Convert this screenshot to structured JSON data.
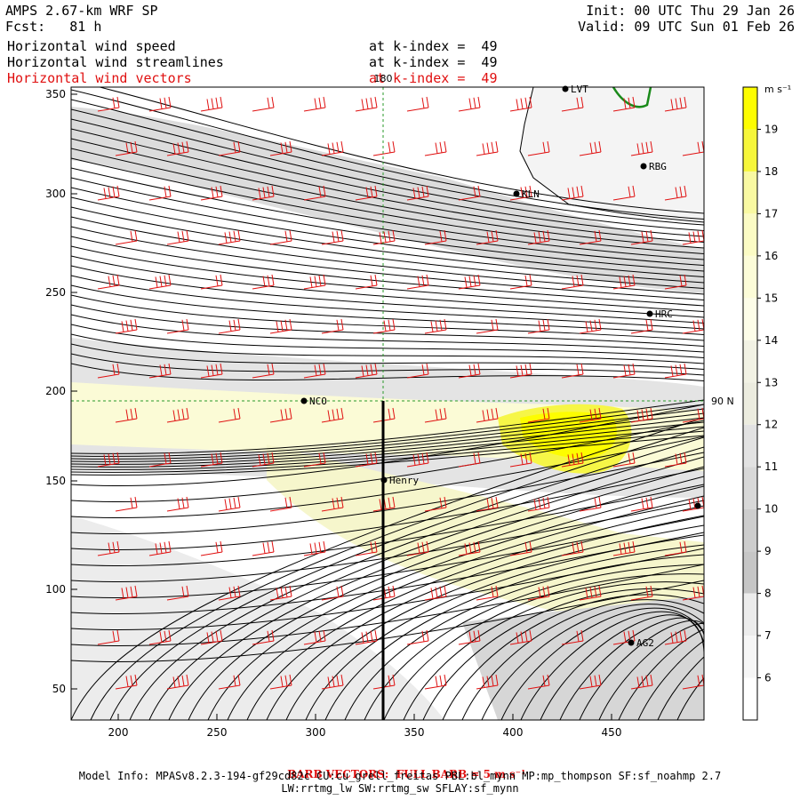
{
  "header": {
    "title": "AMPS 2.67-km WRF SP",
    "forecast": "Fcst:   81 h",
    "init": "Init: 00 UTC Thu 29 Jan 26",
    "valid": "Valid: 09 UTC Sun 01 Feb 26",
    "fields": [
      {
        "name": "Horizontal wind speed",
        "level": "at k-index =  49"
      },
      {
        "name": "Horizontal wind streamlines",
        "level": "at k-index =  49"
      },
      {
        "name": "Horizontal wind vectors",
        "level": "at k-index =  49"
      }
    ]
  },
  "map": {
    "x_ticks": [
      "200",
      "250",
      "300",
      "350",
      "400",
      "450"
    ],
    "y_ticks": [
      "50",
      "100",
      "150",
      "200",
      "250",
      "300",
      "350"
    ],
    "meridian_label": "180",
    "parallel_label": "90 N",
    "stations": [
      {
        "name": "LVT"
      },
      {
        "name": "RBG"
      },
      {
        "name": "KLN"
      },
      {
        "name": "HRC"
      },
      {
        "name": "NCO"
      },
      {
        "name": "Henry"
      },
      {
        "name": "AG2"
      }
    ]
  },
  "colorbar": {
    "units": "m s⁻¹",
    "labels": [
      "19",
      "18",
      "17",
      "16",
      "15",
      "14",
      "13",
      "12",
      "11",
      "10",
      "9",
      "8",
      "7",
      "6"
    ],
    "colors": [
      "#fdfd00",
      "#f6f63a",
      "#f9f9a2",
      "#fbfbc4",
      "#fcfcd8",
      "#fdfde8",
      "#f2f2e4",
      "#ececdf",
      "#e2e2e2",
      "#d8d8d8",
      "#cdcdcd",
      "#c6c6c6",
      "#ececec",
      "#f6f6f6",
      "#ffffff"
    ]
  },
  "footer": {
    "barb_note": "BARB VECTORS:  FULL BARB = 5 m s⁻¹",
    "model_info": "Model Info: MPASv8.2.3-194-gf29cd82c CU:cu_grell_freitas PBL:bl_mynn MP:mp_thompson SF:sf_noahmp 2.7",
    "model_info2": "LW:rrtmg_lw SW:rrtmg_sw SFLAY:sf_mynn"
  }
}
